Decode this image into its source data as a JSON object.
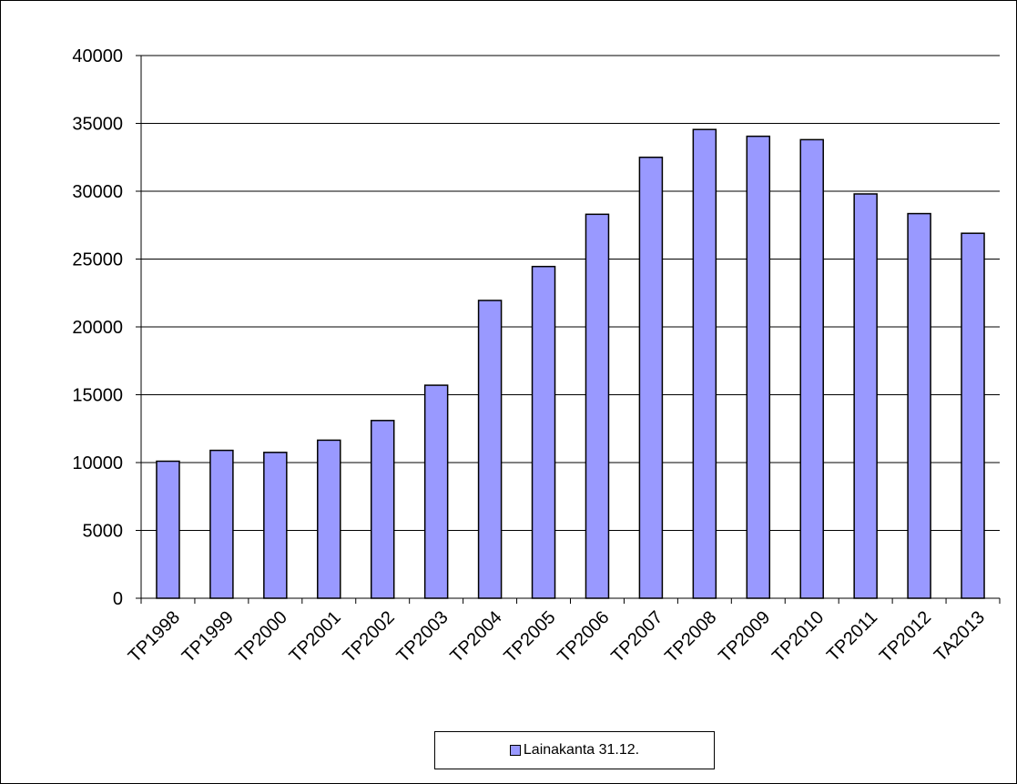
{
  "chart_data": {
    "type": "bar",
    "title": "",
    "xlabel": "",
    "ylabel": "",
    "ylim": [
      0,
      40000
    ],
    "yticks": [
      "0",
      "5000",
      "10000",
      "15000",
      "20000",
      "25000",
      "30000",
      "35000",
      "40000"
    ],
    "categories": [
      "TP1998",
      "TP1999",
      "TP2000",
      "TP2001",
      "TP2002",
      "TP2003",
      "TP2004",
      "TP2005",
      "TP2006",
      "TP2007",
      "TP2008",
      "TP2009",
      "TP2010",
      "TP2011",
      "TP2012",
      "TA2013"
    ],
    "series": [
      {
        "name": "Lainakanta 31.12.",
        "color": "#9999ff",
        "values": [
          10100,
          10900,
          10750,
          11650,
          13100,
          15700,
          21950,
          24450,
          28300,
          32500,
          34550,
          34050,
          33800,
          29800,
          28350,
          26900
        ]
      }
    ],
    "grid": true,
    "legend_position": "bottom"
  }
}
